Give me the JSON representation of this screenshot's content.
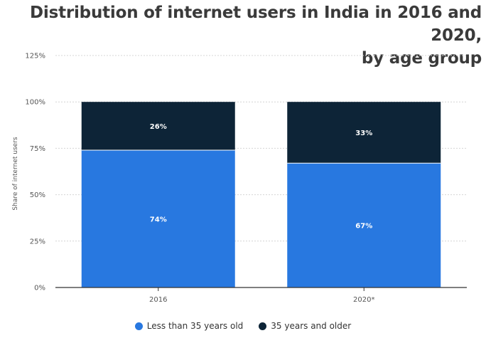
{
  "title_line1": "Distribution of internet users in India in 2016 and 2020,",
  "title_line2": "by age group",
  "chart_data": {
    "type": "bar",
    "stacked": true,
    "categories": [
      "2016",
      "2020*"
    ],
    "series": [
      {
        "name": "Less than 35 years old",
        "values": [
          74,
          67
        ],
        "labels": [
          "74%",
          "67%"
        ],
        "color": "#2878e0"
      },
      {
        "name": "35 years and older",
        "values": [
          26,
          33
        ],
        "labels": [
          "26%",
          "33%"
        ],
        "color": "#0d2437"
      }
    ],
    "ylabel": "Share of internet users",
    "xlabel": "",
    "ylim": [
      0,
      125
    ],
    "yticks": [
      0,
      25,
      50,
      75,
      100,
      125
    ],
    "ytick_labels": [
      "0%",
      "25%",
      "50%",
      "75%",
      "100%",
      "125%"
    ],
    "grid": true,
    "legend_position": "bottom"
  }
}
